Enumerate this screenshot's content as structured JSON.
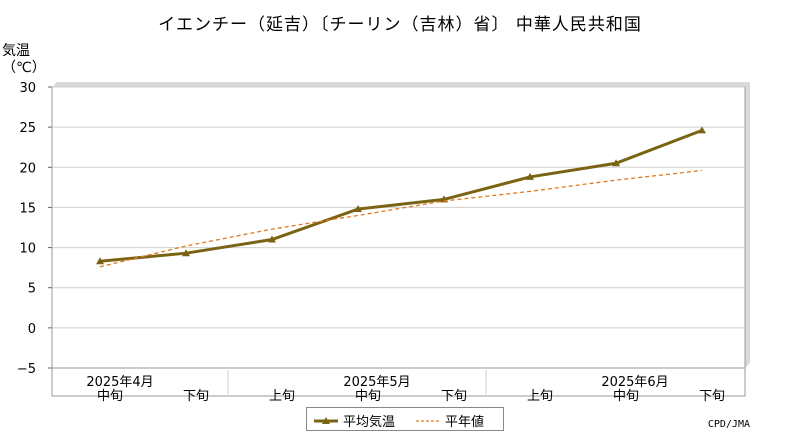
{
  "chart_data": {
    "type": "line",
    "title": "イエンチー（延吉）〔チーリン（吉林）省〕 中華人民共和国",
    "ylabel_line1": "気温",
    "ylabel_line2": "（℃）",
    "ylim": [
      -5,
      30
    ],
    "yticks": [
      -5,
      0,
      5,
      10,
      15,
      20,
      25,
      30
    ],
    "grid": true,
    "categories": [
      "中旬",
      "下旬",
      "上旬",
      "中旬",
      "下旬",
      "上旬",
      "中旬",
      "下旬"
    ],
    "month_labels": [
      "2025年4月",
      "2025年5月",
      "2025年6月"
    ],
    "series": [
      {
        "name": "平均気温",
        "values": [
          8.3,
          9.3,
          11.0,
          14.8,
          16.0,
          18.8,
          20.5,
          24.6
        ],
        "color": "#7a6414",
        "style": "solid"
      },
      {
        "name": "平年値",
        "values": [
          7.6,
          10.2,
          12.3,
          14.0,
          15.8,
          17.0,
          18.4,
          19.6
        ],
        "color": "#e07a1f",
        "style": "dashed"
      }
    ],
    "legend_position": "bottom-center"
  },
  "credit": "CPD/JMA"
}
